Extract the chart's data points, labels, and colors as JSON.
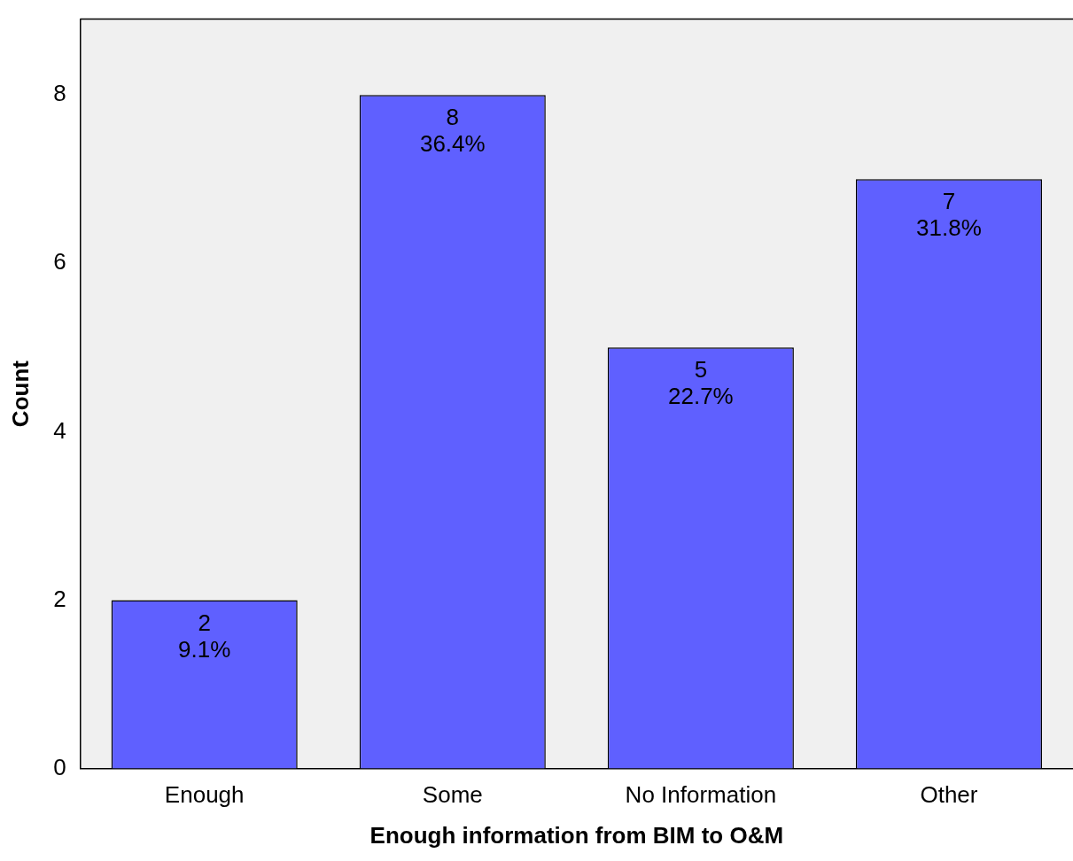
{
  "chart_data": {
    "type": "bar",
    "xlabel": "Enough information from BIM to O&M",
    "ylabel": "Count",
    "categories": [
      "Enough",
      "Some",
      "No Information",
      "Other"
    ],
    "values": [
      2,
      8,
      5,
      7
    ],
    "value_labels": [
      "2\n9.1%",
      "8\n36.4%",
      "5\n22.7%",
      "7\n31.8%"
    ],
    "color": "#5f60ff",
    "ylim": [
      0,
      8.9
    ],
    "yticks": [
      0,
      2,
      4,
      6,
      8
    ],
    "grid": false,
    "legend": false
  }
}
